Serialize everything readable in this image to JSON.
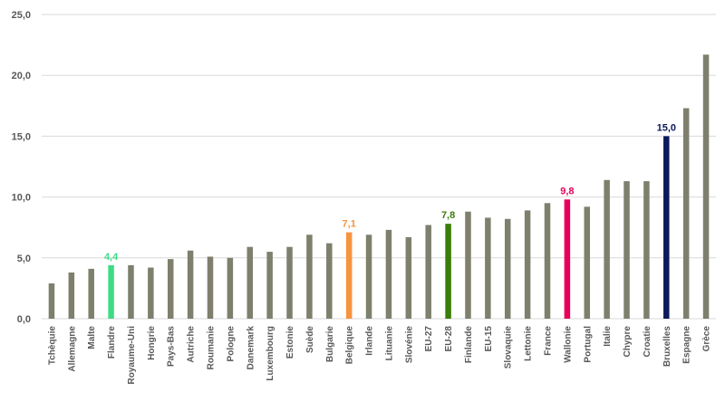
{
  "chart_data": {
    "type": "bar",
    "title": "",
    "xlabel": "",
    "ylabel": "",
    "ylim": [
      0,
      25
    ],
    "yticks": [
      "0,0",
      "5,0",
      "10,0",
      "15,0",
      "20,0",
      "25,0"
    ],
    "ytick_values": [
      0,
      5,
      10,
      15,
      20,
      25
    ],
    "grid": true,
    "legend": "none",
    "default_color": "#7f7f6d",
    "categories": [
      "Tchèquie",
      "Allemagne",
      "Malte",
      "Flandre",
      "Royaume-Uni",
      "Hongrie",
      "Pays-Bas",
      "Autriche",
      "Roumanie",
      "Pologne",
      "Danemark",
      "Luxembourg",
      "Estonie",
      "Suède",
      "Bulgarie",
      "Belgique",
      "Irlande",
      "Lituanie",
      "Slovénie",
      "EU-27",
      "EU-28",
      "Finlande",
      "EU-15",
      "Slovaquie",
      "Lettonie",
      "France",
      "Wallonie",
      "Portugal",
      "Italie",
      "Chypre",
      "Croatie",
      "Bruxelles",
      "Espagne",
      "Grèce"
    ],
    "values": [
      2.9,
      3.8,
      4.1,
      4.4,
      4.4,
      4.2,
      4.9,
      5.6,
      5.1,
      5.0,
      5.9,
      5.5,
      5.9,
      6.9,
      6.2,
      7.1,
      6.9,
      7.3,
      6.7,
      7.7,
      7.8,
      8.8,
      8.3,
      8.2,
      8.9,
      9.5,
      9.8,
      9.2,
      11.4,
      11.3,
      11.3,
      15.0,
      17.3,
      21.7
    ],
    "highlights": [
      {
        "category": "Flandre",
        "color": "#3ddc84",
        "label": "4,4"
      },
      {
        "category": "Belgique",
        "color": "#f7943e",
        "label": "7,1"
      },
      {
        "category": "EU-28",
        "color": "#3a7d0a",
        "label": "7,8"
      },
      {
        "category": "Wallonie",
        "color": "#e8005a",
        "label": "9,8"
      },
      {
        "category": "Bruxelles",
        "color": "#0c1a5c",
        "label": "15,0"
      }
    ]
  }
}
